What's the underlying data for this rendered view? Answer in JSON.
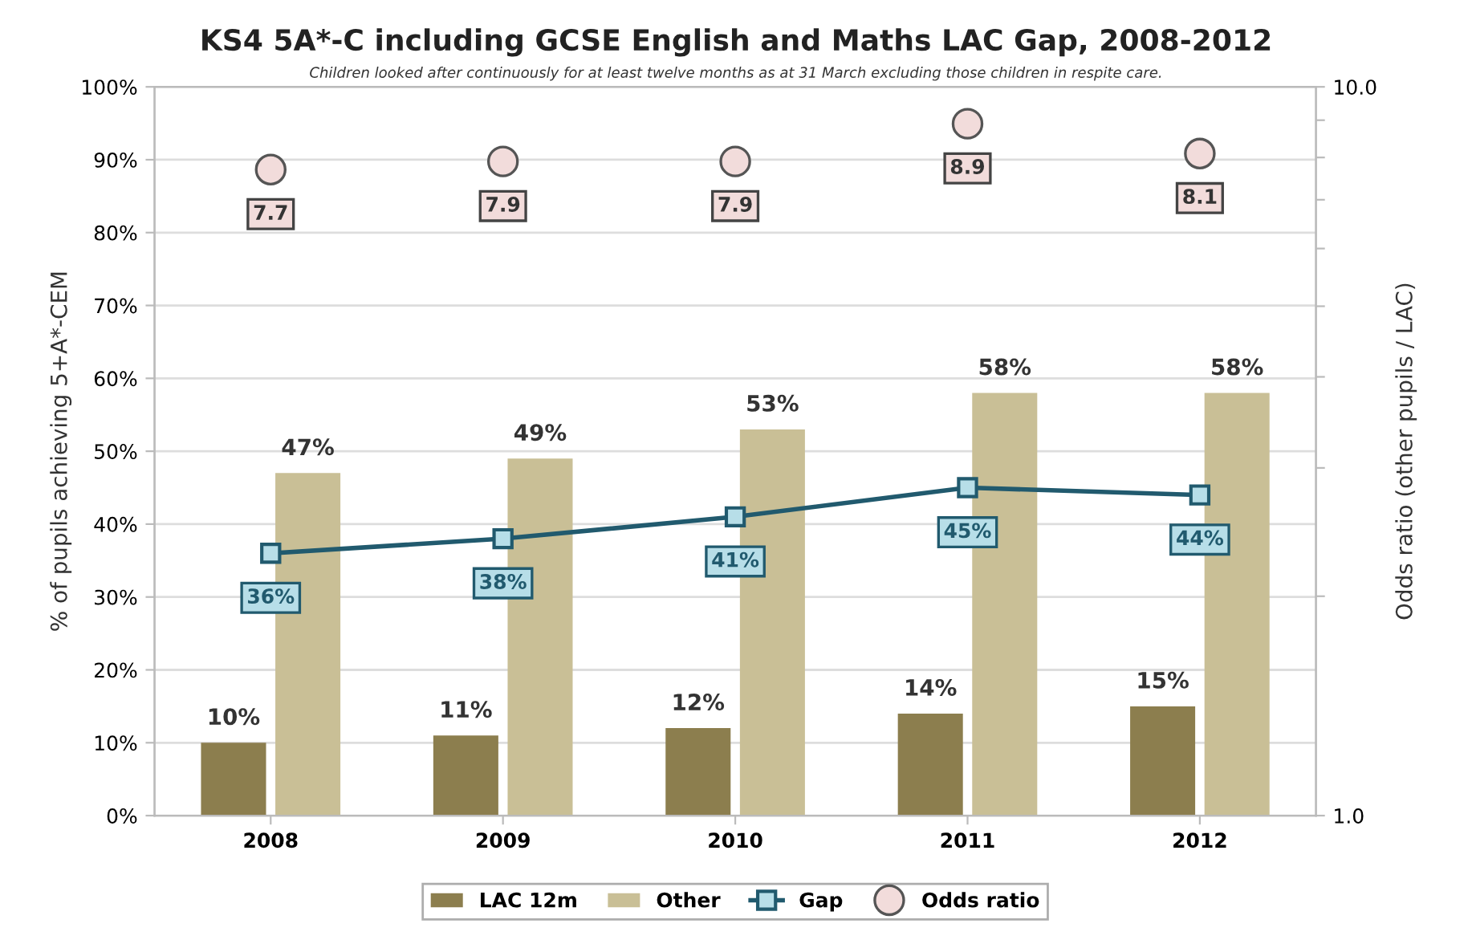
{
  "chart_data": {
    "type": "bar",
    "title": "KS4 5A*-C including GCSE English and Maths LAC Gap, 2008-2012",
    "subtitle": "Children looked after continuously for at least twelve months as at 31 March excluding those children in respite care.",
    "ylabel": "% of pupils achieving 5+A*-CEM",
    "y2label": "Odds ratio (other pupils / LAC)",
    "categories": [
      "2008",
      "2009",
      "2010",
      "2011",
      "2012"
    ],
    "series": [
      {
        "name": "LAC 12m",
        "color": "#8c7e4e",
        "values": [
          10,
          11,
          12,
          14,
          15
        ],
        "value_labels": [
          "10%",
          "11%",
          "12%",
          "14%",
          "15%"
        ]
      },
      {
        "name": "Other",
        "color": "#c9bf96",
        "values": [
          47,
          49,
          53,
          58,
          58
        ],
        "value_labels": [
          "47%",
          "49%",
          "53%",
          "58%",
          "58%"
        ]
      },
      {
        "name": "Gap",
        "type": "line",
        "color": "#215a6e",
        "marker": "square",
        "values": [
          36,
          38,
          41,
          45,
          44
        ],
        "value_labels": [
          "36%",
          "38%",
          "41%",
          "45%",
          "44%"
        ]
      },
      {
        "name": "Odds ratio",
        "type": "scatter",
        "axis": "y2",
        "color": "#f2dcdb",
        "marker": "circle",
        "values": [
          7.7,
          7.9,
          7.9,
          8.9,
          8.1
        ],
        "value_labels": [
          "7.7",
          "7.9",
          "7.9",
          "8.9",
          "8.1"
        ]
      }
    ],
    "ylim": [
      0,
      100
    ],
    "yticks": [
      {
        "value": 0,
        "label": "0%"
      },
      {
        "value": 10,
        "label": "10%"
      },
      {
        "value": 20,
        "label": "20%"
      },
      {
        "value": 30,
        "label": "30%"
      },
      {
        "value": 40,
        "label": "40%"
      },
      {
        "value": 50,
        "label": "50%"
      },
      {
        "value": 60,
        "label": "60%"
      },
      {
        "value": 70,
        "label": "70%"
      },
      {
        "value": 80,
        "label": "80%"
      },
      {
        "value": 90,
        "label": "90%"
      },
      {
        "value": 100,
        "label": "100%"
      }
    ],
    "log": "y2",
    "y2lim": [
      1,
      10
    ],
    "y2ticks": [
      {
        "value": 1,
        "label": "1.0"
      },
      {
        "value": 2,
        "label": null
      },
      {
        "value": 3,
        "label": null
      },
      {
        "value": 4,
        "label": null
      },
      {
        "value": 5,
        "label": null
      },
      {
        "value": 6,
        "label": null
      },
      {
        "value": 7,
        "label": null
      },
      {
        "value": 8,
        "label": null
      },
      {
        "value": 9,
        "label": null
      },
      {
        "value": 10,
        "label": "10.0"
      }
    ],
    "grid": "y",
    "legend": "bottom"
  }
}
